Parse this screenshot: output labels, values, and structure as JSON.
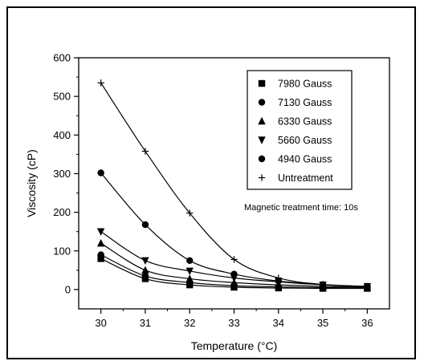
{
  "chart_data": {
    "type": "scatter",
    "title": "",
    "xlabel": "Temperature (°C)",
    "ylabel": "Viscosity (cP)",
    "xlim": [
      29.5,
      36.5
    ],
    "ylim": [
      -50,
      600
    ],
    "x_ticks": [
      30,
      31,
      32,
      33,
      34,
      35,
      36
    ],
    "y_ticks": [
      0,
      100,
      200,
      300,
      400,
      500,
      600
    ],
    "legend_position": "top-right",
    "annotation": "Magnetic treatment time: 10s",
    "series": [
      {
        "name": "7980 Gauss",
        "marker": "square",
        "x": [
          30,
          31,
          32,
          33,
          34,
          35,
          36
        ],
        "y": [
          80,
          28,
          12,
          6,
          4,
          3,
          3
        ]
      },
      {
        "name": "7130 Gauss",
        "marker": "circle",
        "x": [
          30,
          31,
          32,
          33,
          34,
          35,
          36
        ],
        "y": [
          90,
          35,
          18,
          10,
          7,
          5,
          4
        ]
      },
      {
        "name": "6330 Gauss",
        "marker": "triangle-up",
        "x": [
          30,
          31,
          32,
          33,
          34,
          35,
          36
        ],
        "y": [
          120,
          50,
          28,
          18,
          12,
          8,
          6
        ]
      },
      {
        "name": "5660 Gauss",
        "marker": "triangle-down",
        "x": [
          30,
          31,
          32,
          33,
          34,
          35,
          36
        ],
        "y": [
          150,
          75,
          48,
          30,
          20,
          12,
          8
        ]
      },
      {
        "name": "4940 Gauss",
        "marker": "circle",
        "x": [
          30,
          31,
          32,
          33,
          34,
          35,
          36
        ],
        "y": [
          302,
          168,
          75,
          40,
          22,
          13,
          8
        ]
      },
      {
        "name": "Untreatment",
        "marker": "plus",
        "x": [
          30,
          31,
          32,
          33,
          34,
          35,
          36
        ],
        "y": [
          535,
          358,
          198,
          78,
          30,
          13,
          8
        ]
      }
    ]
  }
}
